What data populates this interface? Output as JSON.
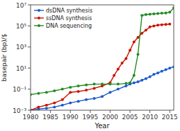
{
  "chart_data": {
    "type": "line",
    "log": "y",
    "marker": "circle",
    "legend": "upper left",
    "grid": false,
    "x_label": "Year",
    "y_label": "basepair (bp)/$",
    "xlim": [
      1980,
      2016
    ],
    "xticks": [
      1980,
      1985,
      1990,
      1995,
      2000,
      2005,
      2010,
      2015
    ],
    "ylim": [
      0.001,
      10000000
    ],
    "yticks": [
      {
        "value": 0.001,
        "label": "10⁻³"
      },
      {
        "value": 0.1,
        "label": "10⁻¹"
      },
      {
        "value": 10,
        "label": "10¹"
      },
      {
        "value": 1000,
        "label": "10³"
      },
      {
        "value": 100000,
        "label": "10⁵"
      },
      {
        "value": 10000000,
        "label": "10⁷"
      }
    ],
    "series": [
      {
        "name": "dsDNA synthesis",
        "color": "#1a5acd",
        "x": [
          1980,
          1982,
          1984,
          1986,
          1988,
          1990,
          1992,
          1994,
          1996,
          1998,
          2000,
          2002,
          2004,
          2005,
          2006,
          2007,
          2008,
          2009,
          2010,
          2011,
          2012,
          2013,
          2014,
          2015,
          2016
        ],
        "values": [
          0.001,
          0.0013,
          0.0015,
          0.002,
          0.003,
          0.005,
          0.007,
          0.01,
          0.013,
          0.02,
          0.05,
          0.1,
          0.2,
          0.3,
          0.4,
          0.5,
          0.7,
          1.0,
          1.5,
          2.5,
          3.5,
          5.0,
          7.0,
          10.0,
          13.0
        ]
      },
      {
        "name": "ssDNA synthesis",
        "color": "#cc1100",
        "x": [
          1980,
          1982,
          1984,
          1986,
          1988,
          1990,
          1992,
          1994,
          1996,
          1998,
          2000,
          2001,
          2002,
          2003,
          2004,
          2005,
          2006,
          2007,
          2008,
          2009,
          2010,
          2011,
          2012,
          2013,
          2014,
          2015
        ],
        "values": [
          0.001,
          0.002,
          0.003,
          0.005,
          0.01,
          0.05,
          0.06,
          0.08,
          0.12,
          0.2,
          0.4,
          2.0,
          8.0,
          30.0,
          80.0,
          500.0,
          3000.0,
          8000.0,
          20000.0,
          40000.0,
          80000.0,
          100000.0,
          120000.0,
          130000.0,
          140000.0,
          150000.0
        ]
      },
      {
        "name": "DNA sequencing",
        "color": "#228B22",
        "x": [
          1980,
          1982,
          1984,
          1986,
          1988,
          1990,
          1992,
          1994,
          1996,
          1998,
          2000,
          2002,
          2004,
          2005,
          2006,
          2007,
          2008,
          2009,
          2010,
          2011,
          2012,
          2013,
          2014,
          2015,
          2016
        ],
        "values": [
          0.03,
          0.04,
          0.05,
          0.07,
          0.1,
          0.15,
          0.2,
          0.25,
          0.3,
          0.3,
          0.3,
          0.3,
          0.35,
          0.4,
          2.0,
          200.0,
          1000000.0,
          1200000.0,
          1300000.0,
          1400000.0,
          1500000.0,
          1600000.0,
          1700000.0,
          2000000.0,
          5000000.0
        ]
      }
    ]
  }
}
